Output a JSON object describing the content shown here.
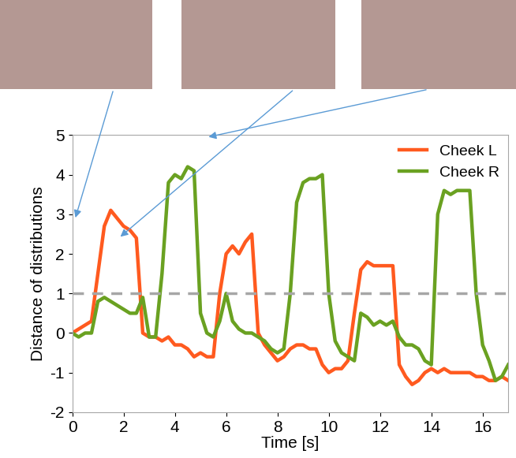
{
  "chart_data": {
    "type": "line",
    "x_label": "Time [s]",
    "y_label": "Distance of distributions",
    "x": [
      0,
      0.25,
      0.5,
      0.75,
      1,
      1.25,
      1.5,
      1.75,
      2,
      2.25,
      2.5,
      2.75,
      3,
      3.25,
      3.5,
      3.75,
      4,
      4.25,
      4.5,
      4.75,
      5,
      5.25,
      5.5,
      5.75,
      6,
      6.25,
      6.5,
      6.75,
      7,
      7.25,
      7.5,
      7.75,
      8,
      8.25,
      8.5,
      8.75,
      9,
      9.25,
      9.5,
      9.75,
      10,
      10.25,
      10.5,
      10.75,
      11,
      11.25,
      11.5,
      11.75,
      12,
      12.25,
      12.5,
      12.75,
      13,
      13.25,
      13.5,
      13.75,
      14,
      14.25,
      14.5,
      14.75,
      15,
      15.25,
      15.5,
      15.75,
      16,
      16.25,
      16.5,
      16.75,
      17
    ],
    "series": [
      {
        "name": "Cheek L",
        "color": "#ff5a1f",
        "line_style": "solid",
        "values": [
          0.0,
          0.1,
          0.2,
          0.3,
          1.5,
          2.7,
          3.1,
          2.9,
          2.7,
          2.6,
          2.4,
          0.0,
          -0.1,
          -0.1,
          -0.2,
          -0.1,
          -0.3,
          -0.3,
          -0.4,
          -0.6,
          -0.5,
          -0.6,
          -0.6,
          1.0,
          2.0,
          2.2,
          2.0,
          2.3,
          2.5,
          0.0,
          -0.3,
          -0.5,
          -0.7,
          -0.6,
          -0.4,
          -0.3,
          -0.3,
          -0.4,
          -0.4,
          -0.8,
          -1.0,
          -0.9,
          -0.9,
          -0.7,
          0.5,
          1.6,
          1.8,
          1.7,
          1.7,
          1.7,
          1.7,
          -0.8,
          -1.1,
          -1.3,
          -1.2,
          -1.0,
          -0.9,
          -1.0,
          -0.9,
          -1.0,
          -1.0,
          -1.0,
          -1.0,
          -1.1,
          -1.1,
          -1.2,
          -1.2,
          -1.1,
          -1.2
        ]
      },
      {
        "name": "Cheek R",
        "color": "#6aa121",
        "line_style": "solid",
        "values": [
          0.0,
          -0.1,
          0.0,
          0.0,
          0.8,
          0.9,
          0.8,
          0.7,
          0.6,
          0.5,
          0.5,
          0.9,
          -0.1,
          -0.1,
          1.5,
          3.8,
          4.0,
          3.9,
          4.2,
          4.1,
          0.5,
          0.0,
          -0.1,
          0.3,
          1.0,
          0.3,
          0.1,
          0.0,
          0.0,
          -0.1,
          -0.2,
          -0.4,
          -0.5,
          -0.4,
          1.0,
          3.3,
          3.8,
          3.9,
          3.9,
          4.0,
          1.0,
          -0.2,
          -0.5,
          -0.6,
          -0.7,
          0.5,
          0.4,
          0.2,
          0.3,
          0.2,
          0.3,
          -0.1,
          -0.3,
          -0.3,
          -0.4,
          -0.7,
          -0.8,
          3.0,
          3.6,
          3.5,
          3.6,
          3.6,
          3.6,
          1.0,
          -0.3,
          -0.7,
          -1.2,
          -1.1,
          -0.8
        ]
      }
    ],
    "reference_line": 1,
    "xlim": [
      0,
      17
    ],
    "xticks": [
      0,
      2,
      4,
      6,
      8,
      10,
      12,
      14,
      16
    ],
    "ylim": [
      -2,
      5
    ],
    "yticks": [
      -2,
      -1,
      0,
      1,
      2,
      3,
      4,
      5
    ],
    "legend": "upper right",
    "grid": false
  }
}
